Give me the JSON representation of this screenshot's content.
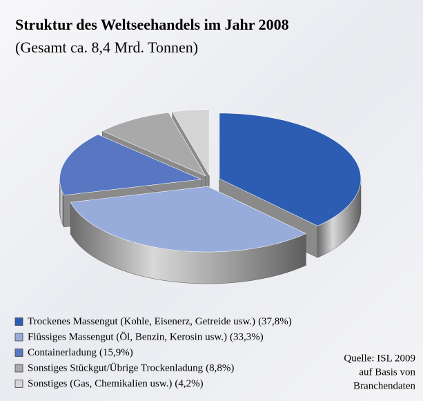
{
  "chart_data": {
    "type": "pie3d",
    "title": "Struktur des Weltseehandels im Jahr 2008",
    "subtitle": "(Gesamt ca. 8,4 Mrd. Tonnen)",
    "categories": [
      "Trockenes Massengut (Kohle, Eisenerz, Getreide usw.)",
      "Flüssiges Massengut (Öl, Benzin, Kerosin usw.)",
      "Containerladung",
      "Sonstiges Stückgut/Übrige Trockenladung",
      "Sonstiges (Gas, Chemikalien usw.)"
    ],
    "values": [
      37.8,
      33.3,
      15.9,
      8.8,
      4.2
    ],
    "value_labels": [
      "(37,8%)",
      "(33,3%)",
      "(15,9%)",
      "(8,8%)",
      "(4,2%)"
    ],
    "colors": [
      "#2c5db3",
      "#97acdb",
      "#5876c2",
      "#a9a9a9",
      "#d4d4d4"
    ],
    "source": [
      "Quelle: ISL 2009",
      "auf Basis von",
      "Branchendaten"
    ]
  }
}
